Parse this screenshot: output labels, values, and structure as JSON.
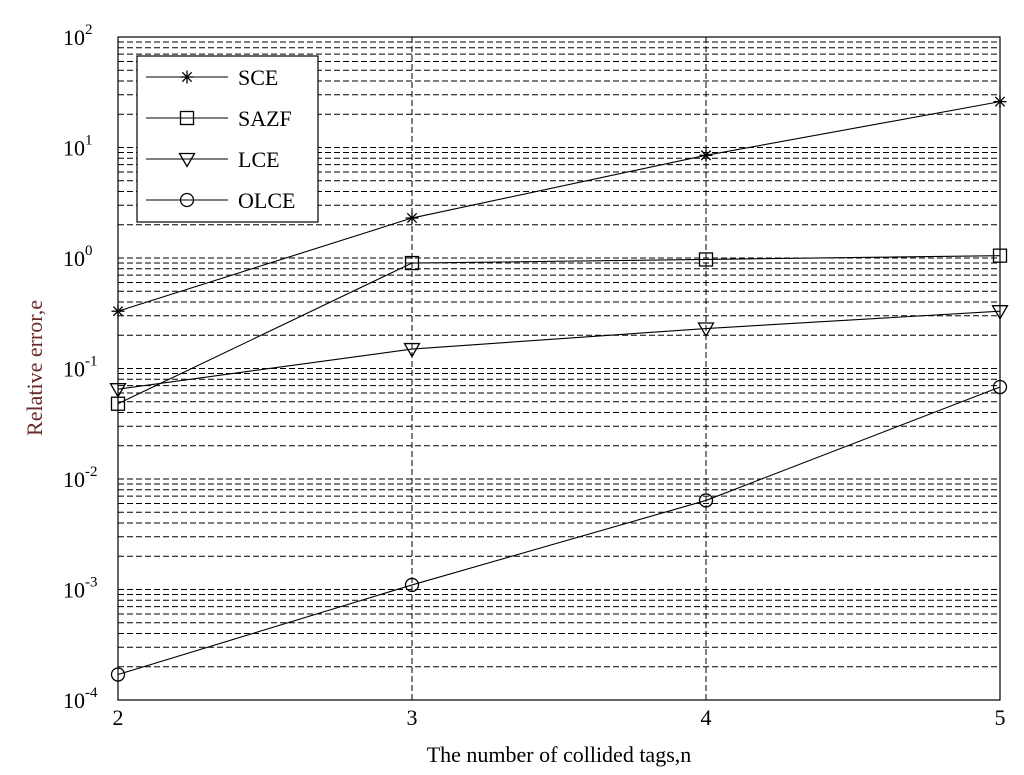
{
  "chart_data": {
    "type": "line",
    "title": "",
    "xlabel": "The number of collided tags,n",
    "ylabel": "Relative error,e",
    "x": [
      2,
      3,
      4,
      5
    ],
    "x_ticks": [
      "2",
      "3",
      "4",
      "5"
    ],
    "xlim": [
      2,
      5
    ],
    "y_scale": "log",
    "ylim": [
      0.0001,
      100
    ],
    "y_ticks": [
      {
        "base": "10",
        "exp": "-4",
        "value": 0.0001
      },
      {
        "base": "10",
        "exp": "-3",
        "value": 0.001
      },
      {
        "base": "10",
        "exp": "-2",
        "value": 0.01
      },
      {
        "base": "10",
        "exp": "-1",
        "value": 0.1
      },
      {
        "base": "10",
        "exp": "0",
        "value": 1
      },
      {
        "base": "10",
        "exp": "1",
        "value": 10
      },
      {
        "base": "10",
        "exp": "2",
        "value": 100
      }
    ],
    "grid": true,
    "legend_position": "top-left",
    "series": [
      {
        "name": "SCE",
        "marker": "star",
        "values": [
          0.33,
          2.3,
          8.5,
          26
        ]
      },
      {
        "name": "SAZF",
        "marker": "square",
        "values": [
          0.048,
          0.9,
          0.97,
          1.05
        ]
      },
      {
        "name": "LCE",
        "marker": "triangle-down",
        "values": [
          0.065,
          0.15,
          0.23,
          0.33
        ]
      },
      {
        "name": "OLCE",
        "marker": "circle",
        "values": [
          0.00017,
          0.0011,
          0.0064,
          0.068
        ]
      }
    ]
  }
}
